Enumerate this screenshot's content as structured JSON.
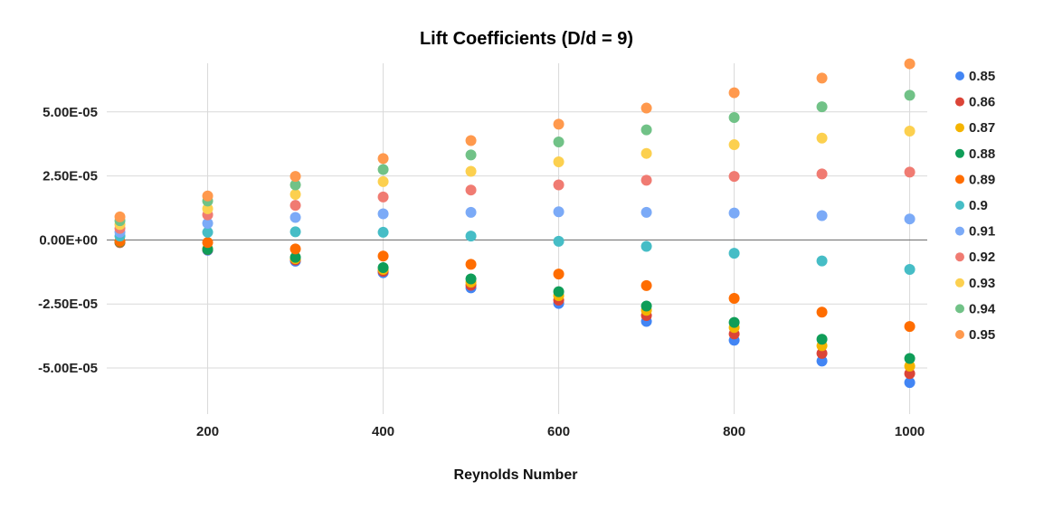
{
  "chart_data": {
    "type": "scatter",
    "title": "Lift Coefficients (D/d = 9)",
    "xlabel": "Reynolds Number",
    "ylabel": "",
    "x": [
      100,
      200,
      300,
      400,
      500,
      600,
      700,
      800,
      900,
      1000
    ],
    "xlim": [
      85,
      1020
    ],
    "ylim": [
      -6.8e-05,
      6.9e-05
    ],
    "xticks": [
      200,
      400,
      600,
      800,
      1000
    ],
    "xtick_labels": [
      "200",
      "400",
      "600",
      "800",
      "1000"
    ],
    "yticks": [
      -5e-05,
      -2.5e-05,
      0,
      2.5e-05,
      5e-05
    ],
    "ytick_labels": [
      "-5.00E-05",
      "-2.50E-05",
      "0.00E+00",
      "2.50E-05",
      "5.00E-05"
    ],
    "grid": true,
    "legend_position": "right",
    "series": [
      {
        "name": "0.85",
        "color": "#4285f4",
        "values": [
          -1e-06,
          -4e-06,
          -8.3e-06,
          -1.28e-05,
          -1.87e-05,
          -2.48e-05,
          -3.18e-05,
          -3.92e-05,
          -4.73e-05,
          -5.57e-05
        ]
      },
      {
        "name": "0.86",
        "color": "#db4437",
        "values": [
          -1e-06,
          -3.8e-06,
          -7.8e-06,
          -1.22e-05,
          -1.77e-05,
          -2.35e-05,
          -2.95e-05,
          -3.67e-05,
          -4.43e-05,
          -5.22e-05
        ]
      },
      {
        "name": "0.87",
        "color": "#f4b400",
        "values": [
          -8e-07,
          -3.5e-06,
          -7.3e-06,
          -1.15e-05,
          -1.65e-05,
          -2.18e-05,
          -2.75e-05,
          -3.42e-05,
          -4.13e-05,
          -4.93e-05
        ]
      },
      {
        "name": "0.88",
        "color": "#0f9d58",
        "values": [
          -7e-07,
          -3.7e-06,
          -6.8e-06,
          -1.08e-05,
          -1.52e-05,
          -2.02e-05,
          -2.58e-05,
          -3.22e-05,
          -3.88e-05,
          -4.63e-05
        ]
      },
      {
        "name": "0.89",
        "color": "#ff6d00",
        "values": [
          -5e-07,
          -1e-06,
          -3.5e-06,
          -6.3e-06,
          -9.5e-06,
          -1.33e-05,
          -1.78e-05,
          -2.28e-05,
          -2.82e-05,
          -3.38e-05
        ]
      },
      {
        "name": "0.9",
        "color": "#46bdc6",
        "values": [
          1.5e-06,
          3e-06,
          3.2e-06,
          3e-06,
          1.5e-06,
          -5e-07,
          -2.5e-06,
          -5.2e-06,
          -8.2e-06,
          -1.15e-05
        ]
      },
      {
        "name": "0.91",
        "color": "#7baaf7",
        "values": [
          3e-06,
          6.5e-06,
          8.8e-06,
          1.02e-05,
          1.08e-05,
          1.1e-05,
          1.08e-05,
          1.05e-05,
          9.5e-06,
          8.2e-06
        ]
      },
      {
        "name": "0.92",
        "color": "#f07b72",
        "values": [
          4.5e-06,
          9.8e-06,
          1.35e-05,
          1.68e-05,
          1.95e-05,
          2.15e-05,
          2.33e-05,
          2.48e-05,
          2.58e-05,
          2.65e-05
        ]
      },
      {
        "name": "0.93",
        "color": "#fcd04f",
        "values": [
          6e-06,
          1.22e-05,
          1.78e-05,
          2.28e-05,
          2.68e-05,
          3.05e-05,
          3.38e-05,
          3.72e-05,
          3.98e-05,
          4.25e-05
        ]
      },
      {
        "name": "0.94",
        "color": "#71c287",
        "values": [
          7.5e-06,
          1.52e-05,
          2.15e-05,
          2.75e-05,
          3.32e-05,
          3.83e-05,
          4.3e-05,
          4.78e-05,
          5.2e-05,
          5.65e-05
        ]
      },
      {
        "name": "0.95",
        "color": "#ff994d",
        "values": [
          9e-06,
          1.72e-05,
          2.48e-05,
          3.18e-05,
          3.88e-05,
          4.52e-05,
          5.15e-05,
          5.75e-05,
          6.32e-05,
          6.88e-05
        ]
      }
    ]
  }
}
